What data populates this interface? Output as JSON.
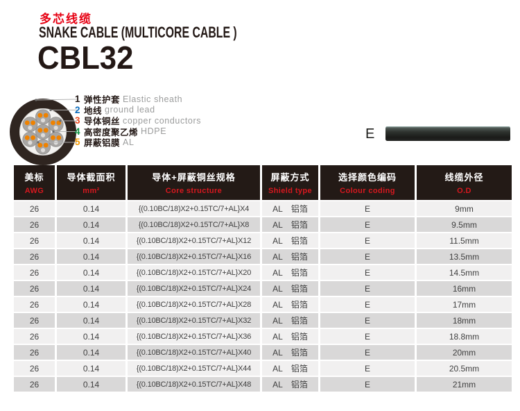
{
  "header": {
    "title_cn": "多芯线缆",
    "title_en": "SNAKE CABLE (MULTICORE CABLE )",
    "model": "CBL32"
  },
  "legend": {
    "items": [
      {
        "num": "1",
        "cn": "弹性护套",
        "en": "Elastic sheath",
        "color": "#231815"
      },
      {
        "num": "2",
        "cn": "地线",
        "en": "ground lead",
        "color": "#0b6cbd"
      },
      {
        "num": "3",
        "cn": "导体铜丝",
        "en": "copper conductors",
        "color": "#e8491e"
      },
      {
        "num": "4",
        "cn": "高密度聚乙烯",
        "en": "HDPE",
        "color": "#0c8f3f"
      },
      {
        "num": "5",
        "cn": "屏蔽铝膜",
        "en": "AL",
        "color": "#f39800"
      }
    ]
  },
  "sample": {
    "label": "E"
  },
  "table": {
    "columns": [
      {
        "cn": "美标",
        "en": "AWG"
      },
      {
        "cn": "导体截面积",
        "en": "mm²"
      },
      {
        "cn": "导体+屏蔽铜丝规格",
        "en": "Core structure"
      },
      {
        "cn": "屏蔽方式",
        "en": "Shield type"
      },
      {
        "cn": "选择颜色编码",
        "en": "Colour coding"
      },
      {
        "cn": "线缆外径",
        "en": "O.D"
      }
    ],
    "rows": [
      {
        "awg": "26",
        "area": "0.14",
        "core": "{(0.10BC/18)X2+0.15TC/7+AL}X4",
        "shield_code": "AL",
        "shield_cn": "铝箔",
        "colour": "E",
        "od": "9mm"
      },
      {
        "awg": "26",
        "area": "0.14",
        "core": "{(0.10BC/18)X2+0.15TC/7+AL}X8",
        "shield_code": "AL",
        "shield_cn": "铝箔",
        "colour": "E",
        "od": "9.5mm"
      },
      {
        "awg": "26",
        "area": "0.14",
        "core": "{(0.10BC/18)X2+0.15TC/7+AL}X12",
        "shield_code": "AL",
        "shield_cn": "铝箔",
        "colour": "E",
        "od": "11.5mm"
      },
      {
        "awg": "26",
        "area": "0.14",
        "core": "{(0.10BC/18)X2+0.15TC/7+AL}X16",
        "shield_code": "AL",
        "shield_cn": "铝箔",
        "colour": "E",
        "od": "13.5mm"
      },
      {
        "awg": "26",
        "area": "0.14",
        "core": "{(0.10BC/18)X2+0.15TC/7+AL}X20",
        "shield_code": "AL",
        "shield_cn": "铝箔",
        "colour": "E",
        "od": "14.5mm"
      },
      {
        "awg": "26",
        "area": "0.14",
        "core": "{(0.10BC/18)X2+0.15TC/7+AL}X24",
        "shield_code": "AL",
        "shield_cn": "铝箔",
        "colour": "E",
        "od": "16mm"
      },
      {
        "awg": "26",
        "area": "0.14",
        "core": "{(0.10BC/18)X2+0.15TC/7+AL}X28",
        "shield_code": "AL",
        "shield_cn": "铝箔",
        "colour": "E",
        "od": "17mm"
      },
      {
        "awg": "26",
        "area": "0.14",
        "core": "{(0.10BC/18)X2+0.15TC/7+AL}X32",
        "shield_code": "AL",
        "shield_cn": "铝箔",
        "colour": "E",
        "od": "18mm"
      },
      {
        "awg": "26",
        "area": "0.14",
        "core": "{(0.10BC/18)X2+0.15TC/7+AL}X36",
        "shield_code": "AL",
        "shield_cn": "铝箔",
        "colour": "E",
        "od": "18.8mm"
      },
      {
        "awg": "26",
        "area": "0.14",
        "core": "{(0.10BC/18)X2+0.15TC/7+AL}X40",
        "shield_code": "AL",
        "shield_cn": "铝箔",
        "colour": "E",
        "od": "20mm"
      },
      {
        "awg": "26",
        "area": "0.14",
        "core": "{(0.10BC/18)X2+0.15TC/7+AL}X44",
        "shield_code": "AL",
        "shield_cn": "铝箔",
        "colour": "E",
        "od": "20.5mm"
      },
      {
        "awg": "26",
        "area": "0.14",
        "core": "{(0.10BC/18)X2+0.15TC/7+AL}X48",
        "shield_code": "AL",
        "shield_cn": "铝箔",
        "colour": "E",
        "od": "21mm"
      }
    ]
  },
  "colors": {
    "accent_red": "#e60012",
    "header_bg": "#231a16",
    "header_en_red": "#d7181f",
    "row_light": "#f1f0f0",
    "row_dark": "#d9d8d8",
    "sheath_dark": "#2f2520",
    "conductor_orange": "#ef8200"
  }
}
